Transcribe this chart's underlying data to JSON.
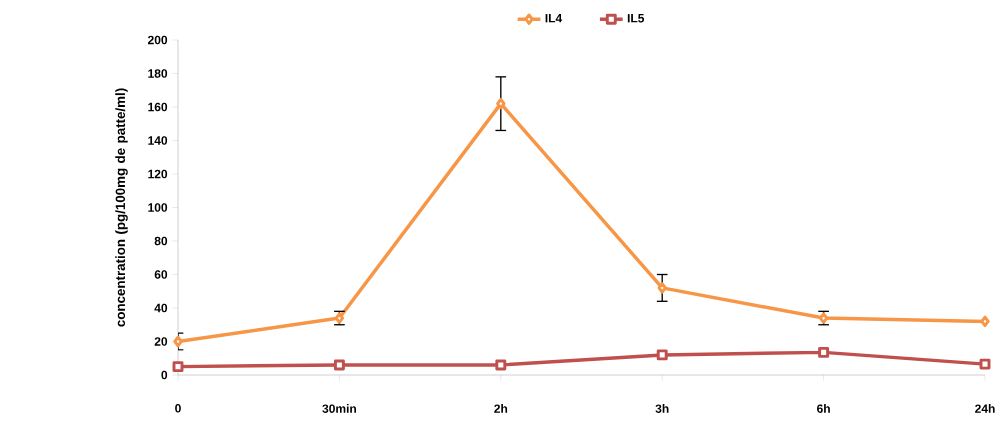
{
  "chart_data": {
    "type": "line",
    "ylabel": "concentration (pg/100mg de patte/ml)",
    "categories": [
      "0",
      "30min",
      "2h",
      "3h",
      "6h",
      "24h"
    ],
    "ylim": [
      0,
      200
    ],
    "yticks": [
      0,
      20,
      40,
      60,
      80,
      100,
      120,
      140,
      160,
      180,
      200
    ],
    "legend": "top",
    "series": [
      {
        "name": "IL4",
        "color": "#f79646",
        "marker": "diamond",
        "values": [
          20,
          34,
          162,
          52,
          34,
          32
        ],
        "errors": [
          5,
          4,
          16,
          8,
          4,
          null
        ]
      },
      {
        "name": "IL5",
        "color": "#c0504d",
        "marker": "square",
        "values": [
          5,
          6,
          6,
          12,
          13.5,
          6.5
        ]
      }
    ]
  }
}
